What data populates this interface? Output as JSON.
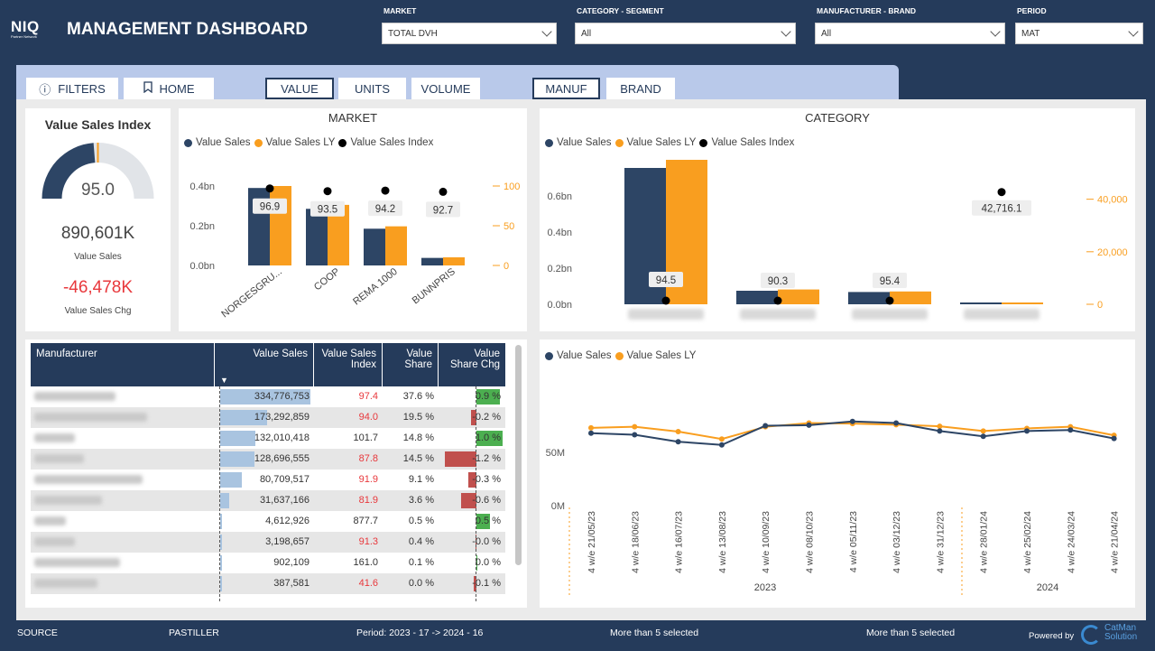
{
  "header": {
    "logo": "NIQ",
    "logo_sub": "Partner Network",
    "title": "MANAGEMENT DASHBOARD",
    "filters": [
      {
        "label": "MARKET",
        "value": "TOTAL DVH"
      },
      {
        "label": "CATEGORY - SEGMENT",
        "value": "All"
      },
      {
        "label": "MANUFACTURER - BRAND",
        "value": "All"
      },
      {
        "label": "PERIOD",
        "value": "MAT"
      }
    ]
  },
  "tabs": {
    "filters": "FILTERS",
    "home": "HOME",
    "value": "VALUE",
    "units": "UNITS",
    "volume": "VOLUME",
    "manuf": "MANUF",
    "brand": "BRAND"
  },
  "kpi": {
    "title": "Value Sales Index",
    "gauge_value": "95.0",
    "gauge_fraction": 0.475,
    "sales": "890,601K",
    "sales_label": "Value Sales",
    "chg": "-46,478K",
    "chg_label": "Value Sales Chg"
  },
  "colors": {
    "navy": "#2d4565",
    "orange": "#f99e1f",
    "red": "#e8383c",
    "pos": "#4caf50",
    "neg": "#c0504d"
  },
  "market_chart": {
    "title": "MARKET",
    "legend": [
      "Value Sales",
      "Value Sales LY",
      "Value Sales Index"
    ],
    "y_ticks": [
      "0.4bn",
      "0.2bn",
      "0.0bn"
    ],
    "y2_ticks": [
      "100",
      "50",
      "0"
    ]
  },
  "category_chart": {
    "title": "CATEGORY",
    "legend": [
      "Value Sales",
      "Value Sales LY",
      "Value Sales Index"
    ],
    "y_ticks": [
      "0.6bn",
      "0.4bn",
      "0.2bn",
      "0.0bn"
    ],
    "y2_ticks": [
      "40,000",
      "20,000",
      "0"
    ]
  },
  "trend_chart": {
    "legend": [
      "Value Sales",
      "Value Sales LY"
    ],
    "y_ticks": [
      "50M",
      "0M"
    ],
    "years": [
      "2023",
      "2024"
    ]
  },
  "chart_data": [
    {
      "type": "bar",
      "title": "MARKET",
      "categories": [
        "NORGESGRU...",
        "COOP",
        "REMA 1000",
        "BUNNPRIS"
      ],
      "series": [
        {
          "name": "Value Sales",
          "values": [
            0.39,
            0.285,
            0.185,
            0.038
          ]
        },
        {
          "name": "Value Sales LY",
          "values": [
            0.4,
            0.305,
            0.197,
            0.041
          ]
        },
        {
          "name": "Value Sales Index",
          "values": [
            96.9,
            93.5,
            94.2,
            92.7
          ]
        }
      ],
      "labels": [
        "96.9",
        "93.5",
        "94.2",
        "92.7"
      ],
      "ylim": [
        0,
        0.5
      ],
      "y2lim": [
        0,
        125
      ]
    },
    {
      "type": "bar",
      "title": "CATEGORY",
      "categories": [
        "",
        "",
        "",
        ""
      ],
      "series": [
        {
          "name": "Value Sales",
          "values": [
            0.755,
            0.075,
            0.068,
            0.01
          ]
        },
        {
          "name": "Value Sales LY",
          "values": [
            0.8,
            0.082,
            0.071,
            0.01
          ]
        },
        {
          "name": "Value Sales Index",
          "values": [
            94.5,
            90.3,
            95.4,
            42716.1
          ]
        }
      ],
      "labels": [
        "94.5",
        "90.3",
        "95.4",
        "42,716.1"
      ],
      "ylim": [
        0,
        0.8
      ],
      "y2lim": [
        0,
        55000
      ]
    },
    {
      "type": "line",
      "x": [
        "4 w/e 21/05/23",
        "4 w/e 18/06/23",
        "4 w/e 16/07/23",
        "4 w/e 13/08/23",
        "4 w/e 10/09/23",
        "4 w/e 08/10/23",
        "4 w/e 05/11/23",
        "4 w/e 03/12/23",
        "4 w/e 31/12/23",
        "4 w/e 28/01/24",
        "4 w/e 25/02/24",
        "4 w/e 24/03/24",
        "4 w/e 21/04/24"
      ],
      "series": [
        {
          "name": "Value Sales",
          "values": [
            68,
            66.5,
            60,
            57,
            75,
            75.5,
            79,
            77.5,
            70,
            65,
            70,
            71,
            63
          ]
        },
        {
          "name": "Value Sales LY",
          "values": [
            73,
            74,
            69.5,
            62.5,
            74,
            77.5,
            77,
            76,
            74.5,
            70,
            72.5,
            74,
            66
          ]
        }
      ],
      "ylim": [
        0,
        100
      ]
    }
  ],
  "table": {
    "headers": [
      "Manufacturer",
      "Value Sales",
      "Value Sales Index",
      "Value Share",
      "Value Share Chg"
    ],
    "rows": [
      {
        "sales": "334,776,753",
        "bar": 1.0,
        "index": "97.4",
        "idx_red": true,
        "share": "37.6 %",
        "chg": "0.9 %",
        "chg_val": 0.9
      },
      {
        "sales": "173,292,859",
        "bar": 0.518,
        "index": "94.0",
        "idx_red": true,
        "share": "19.5 %",
        "chg": "-0.2 %",
        "chg_val": -0.2
      },
      {
        "sales": "132,010,418",
        "bar": 0.394,
        "index": "101.7",
        "idx_red": false,
        "share": "14.8 %",
        "chg": "1.0 %",
        "chg_val": 1.0
      },
      {
        "sales": "128,696,555",
        "bar": 0.384,
        "index": "87.8",
        "idx_red": true,
        "share": "14.5 %",
        "chg": "-1.2 %",
        "chg_val": -1.2
      },
      {
        "sales": "80,709,517",
        "bar": 0.241,
        "index": "91.9",
        "idx_red": true,
        "share": "9.1 %",
        "chg": "-0.3 %",
        "chg_val": -0.3
      },
      {
        "sales": "31,637,166",
        "bar": 0.095,
        "index": "81.9",
        "idx_red": true,
        "share": "3.6 %",
        "chg": "-0.6 %",
        "chg_val": -0.6
      },
      {
        "sales": "4,612,926",
        "bar": 0.014,
        "index": "877.7",
        "idx_red": false,
        "share": "0.5 %",
        "chg": "0.5 %",
        "chg_val": 0.5
      },
      {
        "sales": "3,198,657",
        "bar": 0.01,
        "index": "91.3",
        "idx_red": true,
        "share": "0.4 %",
        "chg": "-0.0 %",
        "chg_val": -0.02
      },
      {
        "sales": "902,109",
        "bar": 0.003,
        "index": "161.0",
        "idx_red": false,
        "share": "0.1 %",
        "chg": "0.0 %",
        "chg_val": 0.0
      },
      {
        "sales": "387,581",
        "bar": 0.001,
        "index": "41.6",
        "idx_red": true,
        "share": "0.0 %",
        "chg": "-0.1 %",
        "chg_val": -0.1
      }
    ]
  },
  "footer": {
    "source": "SOURCE",
    "category": "PASTILLER",
    "period": "Period: 2023 - 17 -> 2024 - 16",
    "sel1": "More than 5 selected",
    "sel2": "More than 5 selected",
    "powered": "Powered by",
    "brand1": "CatMan",
    "brand2": "Solution"
  }
}
